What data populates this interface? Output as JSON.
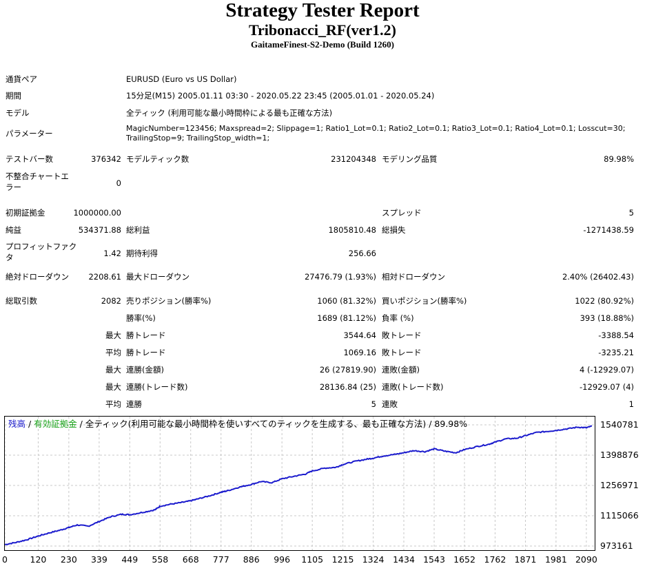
{
  "header": {
    "title": "Strategy Tester Report",
    "subtitle": "Tribonacci_RF(ver1.2)",
    "build": "GaitameFinest-S2-Demo (Build 1260)"
  },
  "info": {
    "symbol_label": "通貨ペア",
    "symbol_value": "EURUSD (Euro vs US Dollar)",
    "period_label": "期間",
    "period_value": "15分足(M15) 2005.01.11 03:30 - 2020.05.22 23:45 (2005.01.01 - 2020.05.24)",
    "model_label": "モデル",
    "model_value": "全ティック (利用可能な最小時間枠による最も正確な方法)",
    "params_label": "パラメーター",
    "params_value": "MagicNumber=123456; Maxspread=2; Slippage=1; Ratio1_Lot=0.1; Ratio2_Lot=0.1; Ratio3_Lot=0.1; Ratio4_Lot=0.1; Losscut=30; TrailingStop=9; TrailingStop_width=1;"
  },
  "stats": {
    "bars_label": "テストバー数",
    "bars_value": "376342",
    "ticks_label": "モデルティック数",
    "ticks_value": "231204348",
    "quality_label": "モデリング品質",
    "quality_value": "89.98%",
    "mismatch_label": "不整合チャートエラー",
    "mismatch_value": "0",
    "deposit_label": "初期証拠金",
    "deposit_value": "1000000.00",
    "spread_label": "スプレッド",
    "spread_value": "5",
    "net_label": "純益",
    "net_value": "534371.88",
    "gross_profit_label": "総利益",
    "gross_profit_value": "1805810.48",
    "gross_loss_label": "総損失",
    "gross_loss_value": "-1271438.59",
    "pf_label": "プロフィットファクタ",
    "pf_value": "1.42",
    "expected_label": "期待利得",
    "expected_value": "256.66",
    "abs_dd_label": "絶対ドローダウン",
    "abs_dd_value": "2208.61",
    "max_dd_label": "最大ドローダウン",
    "max_dd_value": "27476.79 (1.93%)",
    "rel_dd_label": "相対ドローダウン",
    "rel_dd_value": "2.40% (26402.43)",
    "total_label": "総取引数",
    "total_value": "2082",
    "short_label": "売りポジション(勝率%)",
    "short_value": "1060 (81.32%)",
    "long_label": "買いポジション(勝率%)",
    "long_value": "1022 (80.92%)",
    "win_rate_label": "勝率(%)",
    "win_rate_value": "1689 (81.12%)",
    "loss_rate_label": "負率 (%)",
    "loss_rate_value": "393 (18.88%)",
    "max_prefix": "最大",
    "avg_prefix": "平均",
    "largest_win_label": "勝トレード",
    "largest_win_value": "3544.64",
    "largest_loss_label": "敗トレード",
    "largest_loss_value": "-3388.54",
    "avg_win_label": "勝トレード",
    "avg_win_value": "1069.16",
    "avg_loss_label": "敗トレード",
    "avg_loss_value": "-3235.21",
    "max_consec_wins_money_label": "連勝(金額)",
    "max_consec_wins_money_value": "26 (27819.90)",
    "max_consec_losses_money_label": "連敗(金額)",
    "max_consec_losses_money_value": "4 (-12929.07)",
    "max_consec_wins_trades_label": "連勝(トレード数)",
    "max_consec_wins_trades_value": "28136.84 (25)",
    "max_consec_losses_trades_label": "連敗(トレード数)",
    "max_consec_losses_trades_value": "-12929.07 (4)",
    "avg_consec_wins_label": "連勝",
    "avg_consec_wins_value": "5",
    "avg_consec_losses_label": "連敗",
    "avg_consec_losses_value": "1"
  },
  "chart_data": {
    "type": "line",
    "legend": {
      "balance": "残高",
      "sep1": " / ",
      "equity": "有効証拠金",
      "sep2": " / ",
      "rest": "全ティック(利用可能な最小時間枠を使いすべてのティックを生成する、最も正確な方法) / 89.98%"
    },
    "colors": {
      "balance": "#1a1acd",
      "equity": "#16a116",
      "grid": "#c8c8c8"
    },
    "x_ticks": [
      "0",
      "120",
      "230",
      "339",
      "449",
      "558",
      "668",
      "777",
      "886",
      "996",
      "1105",
      "1215",
      "1324",
      "1434",
      "1543",
      "1652",
      "1762",
      "1871",
      "1981",
      "2090"
    ],
    "y_ticks": [
      "1540781",
      "1398876",
      "1256971",
      "1115066",
      "973161"
    ],
    "xlim": [
      0,
      2120
    ],
    "ylim": [
      973161,
      1540781
    ],
    "series": [
      {
        "x": [
          0,
          40,
          80,
          120,
          160,
          200,
          230,
          260,
          300,
          339,
          380,
          420,
          449,
          500,
          540,
          558,
          600,
          640,
          668,
          700,
          740,
          777,
          800,
          840,
          886,
          920,
          960,
          996,
          1040,
          1080,
          1105,
          1150,
          1190,
          1215,
          1260,
          1300,
          1324,
          1360,
          1400,
          1434,
          1470,
          1510,
          1543,
          1580,
          1620,
          1652,
          1700,
          1740,
          1762,
          1800,
          1840,
          1871,
          1910,
          1950,
          1981,
          2020,
          2060,
          2090,
          2110
        ],
        "y": [
          980000,
          990000,
          1003000,
          1020000,
          1035000,
          1048000,
          1060000,
          1072000,
          1066000,
          1088000,
          1110000,
          1122000,
          1120000,
          1132000,
          1143000,
          1160000,
          1170000,
          1178000,
          1185000,
          1196000,
          1210000,
          1225000,
          1232000,
          1248000,
          1262000,
          1275000,
          1270000,
          1288000,
          1300000,
          1310000,
          1325000,
          1338000,
          1342000,
          1355000,
          1370000,
          1380000,
          1385000,
          1395000,
          1402000,
          1410000,
          1420000,
          1415000,
          1428000,
          1418000,
          1410000,
          1425000,
          1440000,
          1450000,
          1460000,
          1475000,
          1478000,
          1490000,
          1505000,
          1510000,
          1515000,
          1522000,
          1530000,
          1527000,
          1535000
        ]
      }
    ]
  }
}
